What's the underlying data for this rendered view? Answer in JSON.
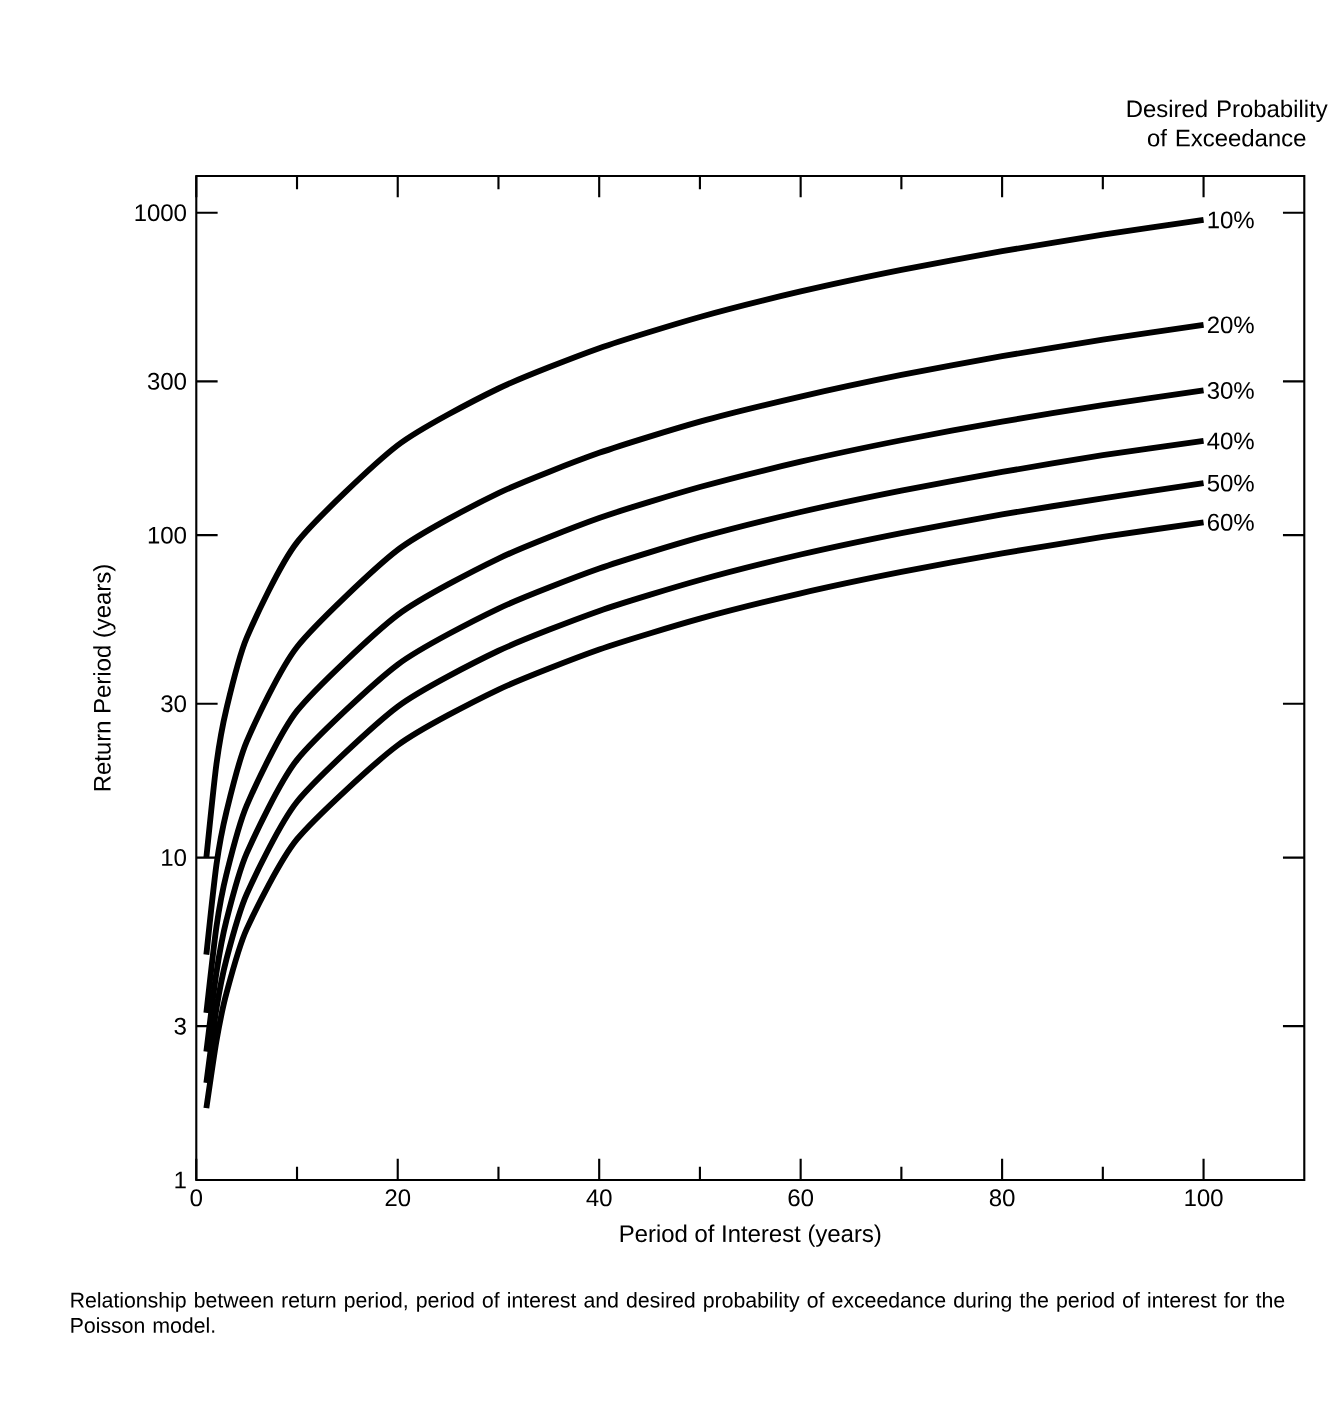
{
  "chart_data": {
    "type": "line",
    "legend_title": "Desired Probability of Exceedance",
    "xlabel": "Period of Interest (years)",
    "ylabel": "Return Period (years)",
    "x": [
      1,
      2,
      3,
      5,
      10,
      20,
      30,
      40,
      50,
      60,
      70,
      80,
      90,
      100
    ],
    "series": [
      {
        "name": "10%",
        "color": "#000000",
        "values": [
          10,
          19.5,
          29,
          48,
          95,
          190,
          285,
          380,
          475,
          570,
          665,
          760,
          855,
          950
        ]
      },
      {
        "name": "20%",
        "color": "#000000",
        "values": [
          5,
          9.5,
          13.9,
          22.9,
          45,
          90,
          135,
          180,
          225,
          269,
          314,
          359,
          404,
          449
        ]
      },
      {
        "name": "30%",
        "color": "#000000",
        "values": [
          3.3,
          6.1,
          8.9,
          14.5,
          28.5,
          56.6,
          84.6,
          113,
          141,
          169,
          197,
          225,
          253,
          281
        ]
      },
      {
        "name": "40%",
        "color": "#000000",
        "values": [
          2.5,
          4.4,
          6.4,
          10.3,
          20.1,
          39.7,
          59.2,
          78.8,
          98.4,
          118,
          137.5,
          157,
          177,
          196
        ]
      },
      {
        "name": "50%",
        "color": "#000000",
        "values": [
          2,
          3.4,
          4.85,
          7.7,
          14.9,
          29.4,
          43.8,
          58.2,
          72.6,
          87.1,
          101.5,
          116,
          130,
          145
        ]
      },
      {
        "name": "60%",
        "color": "#000000",
        "values": [
          1.67,
          2.7,
          3.8,
          6,
          11.4,
          22.3,
          33.2,
          44.2,
          55.1,
          66,
          76.9,
          87.8,
          98.7,
          109.6
        ]
      }
    ],
    "xlim": [
      0,
      110
    ],
    "xticks": [
      0,
      20,
      40,
      60,
      80,
      100
    ],
    "ylim": [
      1,
      1300
    ],
    "yticks": [
      1,
      3,
      10,
      30,
      100,
      300,
      1000
    ],
    "log": "y",
    "legend": "right",
    "marker": "none",
    "line_style": "solid",
    "annotations": [
      "Relationship between return period, period of interest and desired probability of exceedance during the period of interest for the Poisson model."
    ]
  }
}
